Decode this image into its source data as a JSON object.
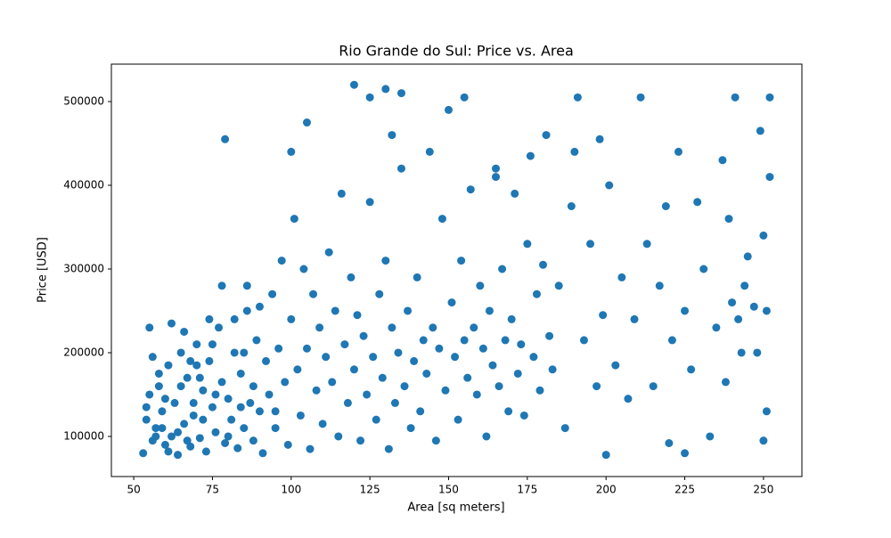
{
  "chart_data": {
    "type": "scatter",
    "title": "Rio Grande do Sul: Price vs. Area",
    "x_label": "Area [sq meters]",
    "y_label": "Price [USD]",
    "color": "#1f77b4",
    "grid": false,
    "xlim": [
      42.9,
      262.2
    ],
    "ylim": [
      52100,
      544700
    ],
    "xticks": [
      50,
      75,
      100,
      125,
      150,
      175,
      200,
      225,
      250
    ],
    "yticks": [
      100000,
      200000,
      300000,
      400000,
      500000
    ],
    "x": [
      53,
      54,
      55,
      56,
      57,
      58,
      59,
      60,
      61,
      62,
      63,
      64,
      65,
      66,
      67,
      68,
      69,
      70,
      71,
      72,
      73,
      74,
      75,
      76,
      77,
      78,
      79,
      80,
      81,
      82,
      83,
      84,
      85,
      86,
      87,
      88,
      89,
      90,
      91,
      92,
      55,
      58,
      62,
      66,
      70,
      74,
      78,
      82,
      86,
      90,
      93,
      94,
      95,
      96,
      97,
      98,
      99,
      100,
      101,
      102,
      103,
      104,
      105,
      106,
      107,
      108,
      109,
      110,
      111,
      112,
      113,
      114,
      115,
      116,
      117,
      118,
      119,
      120,
      121,
      122,
      123,
      124,
      125,
      126,
      127,
      128,
      129,
      130,
      131,
      132,
      133,
      134,
      135,
      136,
      137,
      138,
      139,
      140,
      141,
      142,
      143,
      144,
      145,
      146,
      147,
      148,
      149,
      150,
      151,
      152,
      153,
      154,
      155,
      156,
      157,
      158,
      159,
      160,
      161,
      162,
      163,
      164,
      165,
      166,
      167,
      168,
      169,
      170,
      171,
      172,
      173,
      174,
      175,
      176,
      177,
      178,
      179,
      180,
      181,
      182,
      183,
      185,
      187,
      189,
      191,
      193,
      195,
      197,
      199,
      200,
      201,
      203,
      205,
      207,
      209,
      211,
      213,
      215,
      217,
      219,
      220,
      221,
      223,
      225,
      227,
      229,
      231,
      233,
      235,
      237,
      238,
      239,
      240,
      241,
      242,
      243,
      244,
      245,
      247,
      248,
      249,
      250,
      250,
      251,
      251,
      252,
      252,
      60,
      64,
      68,
      72,
      76,
      80,
      84,
      88,
      57,
      61,
      65,
      69,
      79,
      54,
      56,
      59,
      67,
      71,
      75,
      85,
      95,
      100,
      105,
      120,
      125,
      130,
      132,
      135,
      155,
      165,
      190,
      198,
      225
    ],
    "y": [
      80000,
      120000,
      150000,
      95000,
      110000,
      160000,
      130000,
      90000,
      185000,
      100000,
      140000,
      78000,
      200000,
      115000,
      170000,
      88000,
      125000,
      210000,
      98000,
      155000,
      82000,
      190000,
      135000,
      105000,
      230000,
      165000,
      92000,
      145000,
      120000,
      200000,
      86000,
      175000,
      110000,
      250000,
      140000,
      95000,
      215000,
      130000,
      80000,
      190000,
      230000,
      175000,
      235000,
      225000,
      185000,
      240000,
      280000,
      240000,
      280000,
      255000,
      150000,
      270000,
      110000,
      205000,
      310000,
      165000,
      90000,
      240000,
      360000,
      180000,
      125000,
      300000,
      205000,
      85000,
      270000,
      155000,
      230000,
      115000,
      195000,
      320000,
      165000,
      250000,
      100000,
      390000,
      210000,
      140000,
      290000,
      180000,
      245000,
      95000,
      220000,
      150000,
      380000,
      195000,
      120000,
      270000,
      170000,
      310000,
      85000,
      230000,
      140000,
      200000,
      420000,
      160000,
      250000,
      110000,
      190000,
      290000,
      130000,
      215000,
      175000,
      440000,
      230000,
      95000,
      205000,
      360000,
      155000,
      490000,
      260000,
      195000,
      120000,
      310000,
      215000,
      170000,
      395000,
      230000,
      150000,
      280000,
      205000,
      100000,
      250000,
      185000,
      420000,
      160000,
      300000,
      215000,
      130000,
      240000,
      390000,
      175000,
      210000,
      125000,
      330000,
      435000,
      195000,
      270000,
      155000,
      305000,
      460000,
      220000,
      180000,
      280000,
      110000,
      375000,
      505000,
      215000,
      330000,
      160000,
      245000,
      78000,
      400000,
      185000,
      290000,
      145000,
      240000,
      505000,
      330000,
      160000,
      280000,
      375000,
      92000,
      215000,
      440000,
      250000,
      180000,
      380000,
      300000,
      100000,
      230000,
      430000,
      165000,
      360000,
      260000,
      505000,
      240000,
      200000,
      280000,
      315000,
      255000,
      200000,
      465000,
      95000,
      340000,
      130000,
      250000,
      410000,
      505000,
      145000,
      105000,
      190000,
      120000,
      150000,
      100000,
      135000,
      160000,
      100000,
      82000,
      160000,
      140000,
      455000,
      135000,
      195000,
      110000,
      95000,
      170000,
      210000,
      200000,
      130000,
      440000,
      475000,
      520000,
      505000,
      515000,
      460000,
      510000,
      505000,
      410000,
      440000,
      455000,
      80000
    ]
  }
}
